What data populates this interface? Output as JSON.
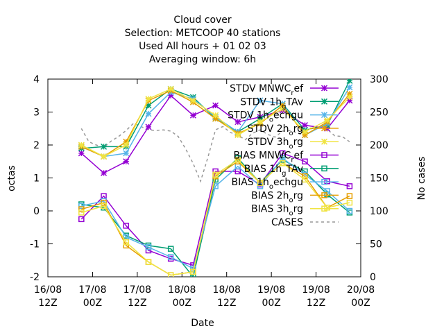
{
  "chart_data": {
    "type": "line",
    "title_lines": [
      "Cloud cover",
      "Selection: METCOOP     40 stations",
      "Used  All hours  + 01 02 03",
      "Averaging window:  6h"
    ],
    "xlabel": "Date",
    "ylabel": "octas",
    "y2label": "No cases",
    "ylim": [
      -2,
      4
    ],
    "y2lim": [
      0,
      300
    ],
    "xlim": [
      0,
      84
    ],
    "xticks": [
      {
        "x": 0,
        "line1": "16/08",
        "line2": "12Z"
      },
      {
        "x": 12,
        "line1": "17/08",
        "line2": "00Z"
      },
      {
        "x": 24,
        "line1": "17/08",
        "line2": "12Z"
      },
      {
        "x": 36,
        "line1": "18/08",
        "line2": "00Z"
      },
      {
        "x": 48,
        "line1": "18/08",
        "line2": "12Z"
      },
      {
        "x": 60,
        "line1": "19/08",
        "line2": "00Z"
      },
      {
        "x": 72,
        "line1": "19/08",
        "line2": "12Z"
      },
      {
        "x": 84,
        "line1": "20/08",
        "line2": "00Z"
      }
    ],
    "yticks": [
      "4",
      "3",
      "2",
      "1",
      "0",
      "-1",
      "-2"
    ],
    "y2ticks": [
      "300",
      "250",
      "200",
      "150",
      "100",
      "50",
      "0"
    ],
    "x": [
      9,
      15,
      21,
      27,
      33,
      39,
      45,
      51,
      57,
      63,
      69,
      75,
      81
    ],
    "legend_position": "top-right",
    "series": [
      {
        "name": "STDV MNWC_ref",
        "label_main": "STDV MNWC",
        "label_sub": "r",
        "label_tail": "ef",
        "color": "#9400d3",
        "marker": "star",
        "values": [
          1.75,
          1.15,
          1.5,
          2.55,
          3.5,
          2.9,
          3.2,
          2.7,
          2.85,
          3.05,
          2.6,
          2.5,
          3.35
        ]
      },
      {
        "name": "STDV 1h_gTAv",
        "label_main": "STDV 1h",
        "label_sub": "g",
        "label_tail": "TAv",
        "color": "#009e73",
        "marker": "star",
        "values": [
          1.9,
          1.95,
          1.95,
          3.2,
          3.7,
          3.45,
          2.8,
          2.4,
          2.8,
          3.25,
          2.45,
          2.6,
          3.95
        ]
      },
      {
        "name": "STDV 1h_oechgu",
        "label_main": "STDV 1h",
        "label_sub": "o",
        "label_tail": "echgu",
        "color": "#56b4e9",
        "marker": "star",
        "values": [
          1.95,
          1.65,
          1.75,
          2.95,
          3.6,
          3.4,
          2.85,
          2.4,
          3.35,
          3.25,
          2.3,
          2.65,
          3.75
        ]
      },
      {
        "name": "STDV 2h_org",
        "label_main": "STDV 2h",
        "label_sub": "o",
        "label_tail": "rg",
        "color": "#e69f00",
        "marker": "star",
        "values": [
          1.95,
          1.65,
          2.1,
          3.35,
          3.65,
          3.3,
          2.8,
          2.35,
          2.65,
          3.2,
          2.3,
          2.7,
          3.55
        ]
      },
      {
        "name": "STDV 3h_org",
        "label_main": "STDV 3h",
        "label_sub": "o",
        "label_tail": "rg",
        "color": "#f0e442",
        "marker": "star",
        "values": [
          2.0,
          1.65,
          2.0,
          3.4,
          3.7,
          3.35,
          2.9,
          2.3,
          2.7,
          3.1,
          2.4,
          2.75,
          3.45
        ]
      },
      {
        "name": "BIAS MNWC_ref",
        "label_main": "BIAS MNWC",
        "label_sub": "r",
        "label_tail": "ef",
        "color": "#9400d3",
        "marker": "square",
        "values": [
          -0.25,
          0.45,
          -0.45,
          -1.2,
          -1.45,
          -1.65,
          1.2,
          1.2,
          0.8,
          1.75,
          1.5,
          0.9,
          0.75
        ]
      },
      {
        "name": "BIAS 1h_gTAv",
        "label_main": "BIAS 1h",
        "label_sub": "g",
        "label_tail": "TAv",
        "color": "#009e73",
        "marker": "square",
        "values": [
          0.2,
          0.1,
          -0.75,
          -1.05,
          -1.15,
          -2.0,
          0.95,
          1.6,
          0.85,
          1.55,
          1.2,
          0.5,
          -0.05
        ]
      },
      {
        "name": "BIAS 1h_oechgu",
        "label_main": "BIAS 1h",
        "label_sub": "o",
        "label_tail": "echgu",
        "color": "#56b4e9",
        "marker": "square",
        "values": [
          0.15,
          0.3,
          -0.8,
          -1.1,
          -1.4,
          -1.75,
          0.75,
          1.35,
          0.75,
          1.6,
          1.1,
          0.6,
          0.0
        ]
      },
      {
        "name": "BIAS 2h_org",
        "label_main": "BIAS 2h",
        "label_sub": "o",
        "label_tail": "rg",
        "color": "#e69f00",
        "marker": "square",
        "values": [
          0.05,
          0.25,
          -1.05,
          -1.55,
          -1.95,
          -1.85,
          1.05,
          1.5,
          0.85,
          1.45,
          1.05,
          0.1,
          0.45
        ]
      },
      {
        "name": "BIAS 3h_org",
        "label_main": "BIAS 3h",
        "label_sub": "o",
        "label_tail": "rg",
        "color": "#f0e442",
        "marker": "square",
        "values": [
          -0.05,
          0.15,
          -0.95,
          -1.55,
          -1.95,
          -1.85,
          1.1,
          1.55,
          0.85,
          1.45,
          0.95,
          0.1,
          0.25
        ]
      }
    ],
    "cases": {
      "name": "CASES",
      "color": "#999999",
      "axis": "y2",
      "x": [
        9,
        11,
        13,
        15,
        17,
        19,
        21,
        23,
        25,
        27,
        29,
        31,
        33,
        35,
        37,
        39,
        41,
        43,
        45,
        47,
        49,
        51,
        53,
        55,
        57,
        59,
        61,
        63,
        65,
        67,
        69,
        71,
        73,
        75,
        77,
        79,
        81
      ],
      "values": [
        225,
        205,
        200,
        196,
        206,
        213,
        222,
        233,
        228,
        223,
        222,
        223,
        221,
        213,
        194,
        172,
        145,
        182,
        223,
        228,
        219,
        215,
        208,
        218,
        223,
        216,
        212,
        221,
        222,
        218,
        214,
        222,
        226,
        224,
        214,
        213,
        205
      ]
    }
  }
}
